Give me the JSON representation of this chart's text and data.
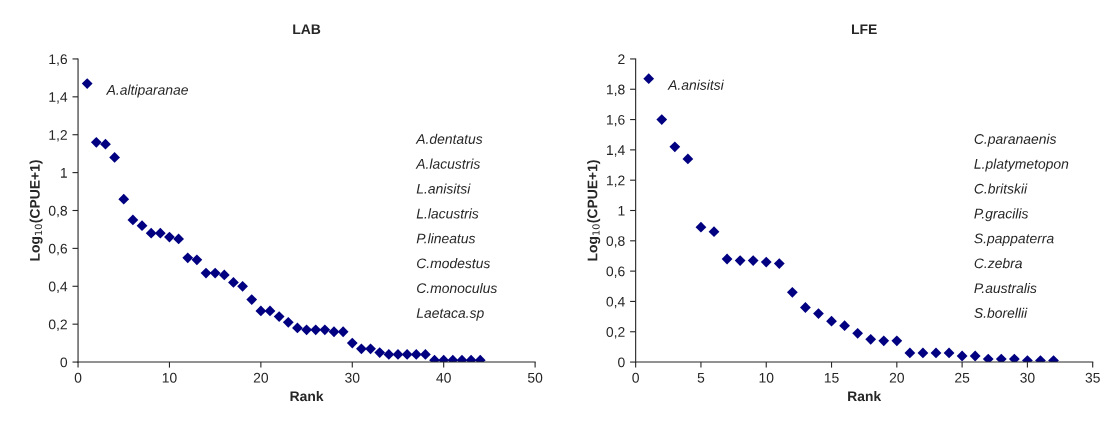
{
  "chart_data": [
    {
      "type": "scatter",
      "title": "LAB",
      "xlabel": "Rank",
      "ylabel": "Log$_{10}$(CPUE+1)",
      "marker": "diamond",
      "grid": false,
      "legend": false,
      "x": [
        1,
        2,
        3,
        4,
        5,
        6,
        7,
        8,
        9,
        10,
        11,
        12,
        13,
        14,
        15,
        16,
        17,
        18,
        19,
        20,
        21,
        22,
        23,
        24,
        25,
        26,
        27,
        28,
        29,
        30,
        31,
        32,
        33,
        34,
        35,
        36,
        37,
        38,
        39,
        40,
        41,
        42,
        43,
        44
      ],
      "series": [
        {
          "color": "#000080",
          "values": [
            1.47,
            1.16,
            1.15,
            1.08,
            0.86,
            0.75,
            0.72,
            0.68,
            0.68,
            0.66,
            0.65,
            0.55,
            0.54,
            0.47,
            0.47,
            0.46,
            0.42,
            0.4,
            0.33,
            0.27,
            0.27,
            0.24,
            0.21,
            0.18,
            0.17,
            0.17,
            0.17,
            0.16,
            0.16,
            0.1,
            0.07,
            0.07,
            0.05,
            0.04,
            0.04,
            0.04,
            0.04,
            0.04,
            0.01,
            0.01,
            0.01,
            0.01,
            0.01,
            0.01
          ]
        }
      ],
      "xlim": [
        0,
        50
      ],
      "xticks": [
        0,
        10,
        20,
        30,
        40,
        50
      ],
      "ylim": [
        0,
        1.6
      ],
      "yticks": [
        0,
        {
          "value": 0.2,
          "label": "0,2"
        },
        {
          "value": 0.4,
          "label": "0,4"
        },
        {
          "value": 0.6,
          "label": "0,6"
        },
        {
          "value": 0.8,
          "label": "0,8"
        },
        1,
        {
          "value": 1.2,
          "label": "1,2"
        },
        {
          "value": 1.4,
          "label": "1,4"
        },
        {
          "value": 1.6,
          "label": "1,6"
        }
      ],
      "annotations": [
        {
          "text": "A.altiparanae",
          "x": 1,
          "y": 1.47
        },
        "A.dentatus",
        "A.lacustris",
        "L.anisitsi",
        "L.lacustris",
        "P.lineatus",
        "C.modestus",
        "C.monoculus",
        "Laetaca.sp"
      ]
    },
    {
      "type": "scatter",
      "title": "LFE",
      "xlabel": "Rank",
      "ylabel": "Log$_{10}$(CPUE+1)",
      "marker": "diamond",
      "grid": false,
      "legend": false,
      "x": [
        1,
        2,
        3,
        4,
        5,
        6,
        7,
        8,
        9,
        10,
        11,
        12,
        13,
        14,
        15,
        16,
        17,
        18,
        19,
        20,
        21,
        22,
        23,
        24,
        25,
        26,
        27,
        28,
        29,
        30,
        31,
        32
      ],
      "series": [
        {
          "color": "#000080",
          "values": [
            1.87,
            1.6,
            1.42,
            1.34,
            0.89,
            0.86,
            0.68,
            0.67,
            0.67,
            0.66,
            0.65,
            0.46,
            0.36,
            0.32,
            0.27,
            0.24,
            0.19,
            0.15,
            0.14,
            0.14,
            0.06,
            0.06,
            0.06,
            0.06,
            0.04,
            0.04,
            0.02,
            0.02,
            0.02,
            0.01,
            0.01,
            0.01
          ]
        }
      ],
      "xlim": [
        0,
        35
      ],
      "xticks": [
        0,
        5,
        10,
        15,
        20,
        25,
        30,
        35
      ],
      "ylim": [
        0,
        2
      ],
      "yticks": [
        0,
        {
          "value": 0.2,
          "label": "0,2"
        },
        {
          "value": 0.4,
          "label": "0,4"
        },
        {
          "value": 0.6,
          "label": "0,6"
        },
        {
          "value": 0.8,
          "label": "0,8"
        },
        1,
        {
          "value": 1.2,
          "label": "1,2"
        },
        {
          "value": 1.4,
          "label": "1,4"
        },
        {
          "value": 1.6,
          "label": "1,6"
        },
        {
          "value": 1.8,
          "label": "1,8"
        },
        2
      ],
      "annotations": [
        {
          "text": "A.anisitsi",
          "x": 1,
          "y": 1.87
        },
        "C.paranaenis",
        "L.platymetopon",
        "C.britskii",
        "P.gracilis",
        "S.pappaterra",
        "C.zebra",
        "P.australis",
        "S.borellii"
      ]
    }
  ]
}
